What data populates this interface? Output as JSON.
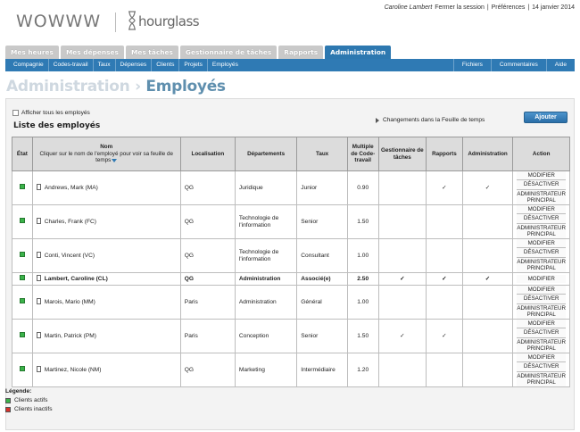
{
  "header": {
    "logo_left": "WOWWW",
    "logo_right": "hourglass",
    "user_name": "Caroline Lambert",
    "logout": "Fermer la session",
    "sep1": "|",
    "preferences": "Préférences",
    "sep2": "|",
    "date": "14 janvier 2014"
  },
  "main_tabs": [
    {
      "label": "Mes heures"
    },
    {
      "label": "Mes dépenses"
    },
    {
      "label": "Mes tâches"
    },
    {
      "label": "Gestionnaire de tâches"
    },
    {
      "label": "Rapports"
    },
    {
      "label": "Administration",
      "active": true
    }
  ],
  "sub_nav": {
    "left": [
      "Compagnie",
      "Codes-travail",
      "Taux",
      "Dépenses",
      "Clients",
      "Projets",
      "Employés"
    ],
    "right": [
      "Fichiers",
      "Commentaires",
      "Aide"
    ]
  },
  "page": {
    "crumb": "Administration",
    "separator": "›",
    "title": "Employés",
    "show_all_label": "Afficher tous les employés",
    "list_title": "Liste des employés",
    "changes_link": "Changements dans la Feuille de temps",
    "add_button": "Ajouter"
  },
  "table": {
    "headers": {
      "state": "État",
      "name_title": "Nom",
      "name_sub": "Cliquer sur le nom de l'employé pour voir sa feuille de temps",
      "location": "Localisation",
      "departments": "Départements",
      "rate": "Taux",
      "multiple": "Multiple de Code-travail",
      "task_manager": "Gestionnaire de tâches",
      "reports": "Rapports",
      "admin": "Administration",
      "action": "Action"
    },
    "rows": [
      {
        "name": "Andrews, Mark (MA)",
        "location": "QG",
        "department": "Juridique",
        "rate": "Junior",
        "multiple": "0.90",
        "task_manager": "",
        "reports": "✓",
        "admin": "✓",
        "actions": [
          "MODIFIER",
          "DÉSACTIVER",
          "ADMINISTRATEUR PRINCIPAL"
        ]
      },
      {
        "name": "Charles, Frank (FC)",
        "location": "QG",
        "department": "Technologie de l'information",
        "rate": "Senior",
        "multiple": "1.50",
        "task_manager": "",
        "reports": "",
        "admin": "",
        "actions": [
          "MODIFIER",
          "DÉSACTIVER",
          "ADMINISTRATEUR PRINCIPAL"
        ]
      },
      {
        "name": "Conti, Vincent (VC)",
        "location": "QG",
        "department": "Technologie de l'information",
        "rate": "Consultant",
        "multiple": "1.00",
        "task_manager": "",
        "reports": "",
        "admin": "",
        "actions": [
          "MODIFIER",
          "DÉSACTIVER",
          "ADMINISTRATEUR PRINCIPAL"
        ]
      },
      {
        "name": "Lambert, Caroline (CL)",
        "location": "QG",
        "department": "Administration",
        "rate": "Associé(e)",
        "multiple": "2.50",
        "task_manager": "✓",
        "reports": "✓",
        "admin": "✓",
        "actions": [
          "MODIFIER"
        ],
        "bold": true
      },
      {
        "name": "Marois, Mario (MM)",
        "location": "Paris",
        "department": "Administration",
        "rate": "Général",
        "multiple": "1.00",
        "task_manager": "",
        "reports": "",
        "admin": "",
        "actions": [
          "MODIFIER",
          "DÉSACTIVER",
          "ADMINISTRATEUR PRINCIPAL"
        ]
      },
      {
        "name": "Martin, Patrick (PM)",
        "location": "Paris",
        "department": "Conception",
        "rate": "Senior",
        "multiple": "1.50",
        "task_manager": "✓",
        "reports": "✓",
        "admin": "",
        "actions": [
          "MODIFIER",
          "DÉSACTIVER",
          "ADMINISTRATEUR PRINCIPAL"
        ]
      },
      {
        "name": "Martinez, Nicole (NM)",
        "location": "QG",
        "department": "Marketing",
        "rate": "Intermédiaire",
        "multiple": "1.20",
        "task_manager": "",
        "reports": "",
        "admin": "",
        "actions": [
          "MODIFIER",
          "DÉSACTIVER",
          "ADMINISTRATEUR PRINCIPAL"
        ]
      }
    ]
  },
  "legend": {
    "title": "Légende:",
    "active": "Clients actifs",
    "inactive": "Clients inactifs",
    "active_color": "#3bb34a",
    "inactive_color": "#d9312b"
  }
}
